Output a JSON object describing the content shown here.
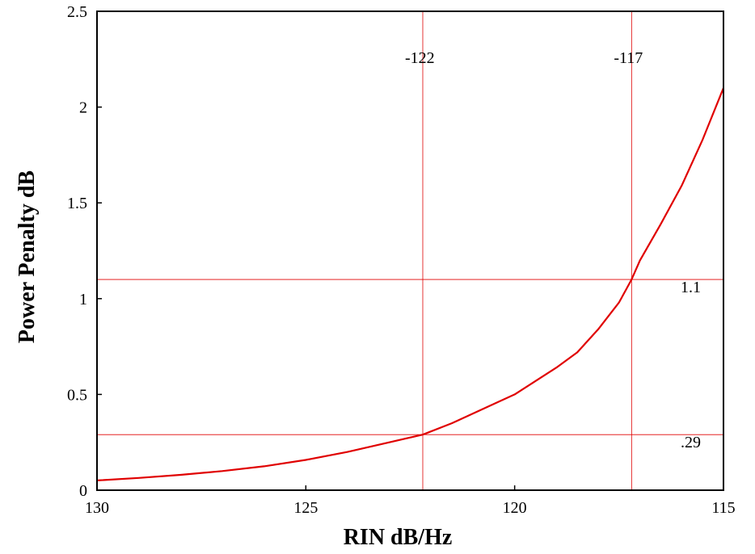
{
  "chart_data": {
    "type": "line",
    "title": "",
    "xlabel": "RIN dB/Hz",
    "ylabel": "Power Penalty dB",
    "xlim": [
      130,
      115
    ],
    "ylim": [
      0,
      2.5
    ],
    "x_ticks": [
      130,
      125,
      120,
      115
    ],
    "x_tick_labels": [
      "130",
      "125",
      "120",
      "115"
    ],
    "y_ticks": [
      0,
      0.5,
      1,
      1.5,
      2,
      2.5
    ],
    "y_tick_labels": [
      "0",
      "0.5",
      "1",
      "1.5",
      "2",
      "2.5"
    ],
    "grid": false,
    "legend": "none",
    "series": [
      {
        "color": "#e00000",
        "x": [
          130.5,
          130,
          129,
          128,
          127,
          126,
          125,
          124,
          123,
          122.2,
          121.5,
          121,
          120.5,
          120,
          119.5,
          119,
          118.5,
          118,
          117.5,
          117.2,
          117,
          116.5,
          116,
          115.5,
          115
        ],
        "y": [
          0.044,
          0.051,
          0.064,
          0.08,
          0.1,
          0.125,
          0.158,
          0.2,
          0.25,
          0.29,
          0.35,
          0.4,
          0.45,
          0.5,
          0.57,
          0.64,
          0.72,
          0.84,
          0.98,
          1.1,
          1.2,
          1.39,
          1.59,
          1.83,
          2.1
        ]
      }
    ],
    "reference_lines": {
      "color": "#e00000",
      "vertical": [
        {
          "x": 122.2,
          "label": "-122"
        },
        {
          "x": 117.2,
          "label": "-117"
        }
      ],
      "horizontal": [
        {
          "y": 1.1,
          "label": "1.1"
        },
        {
          "y": 0.29,
          "label": ".29"
        }
      ]
    }
  }
}
